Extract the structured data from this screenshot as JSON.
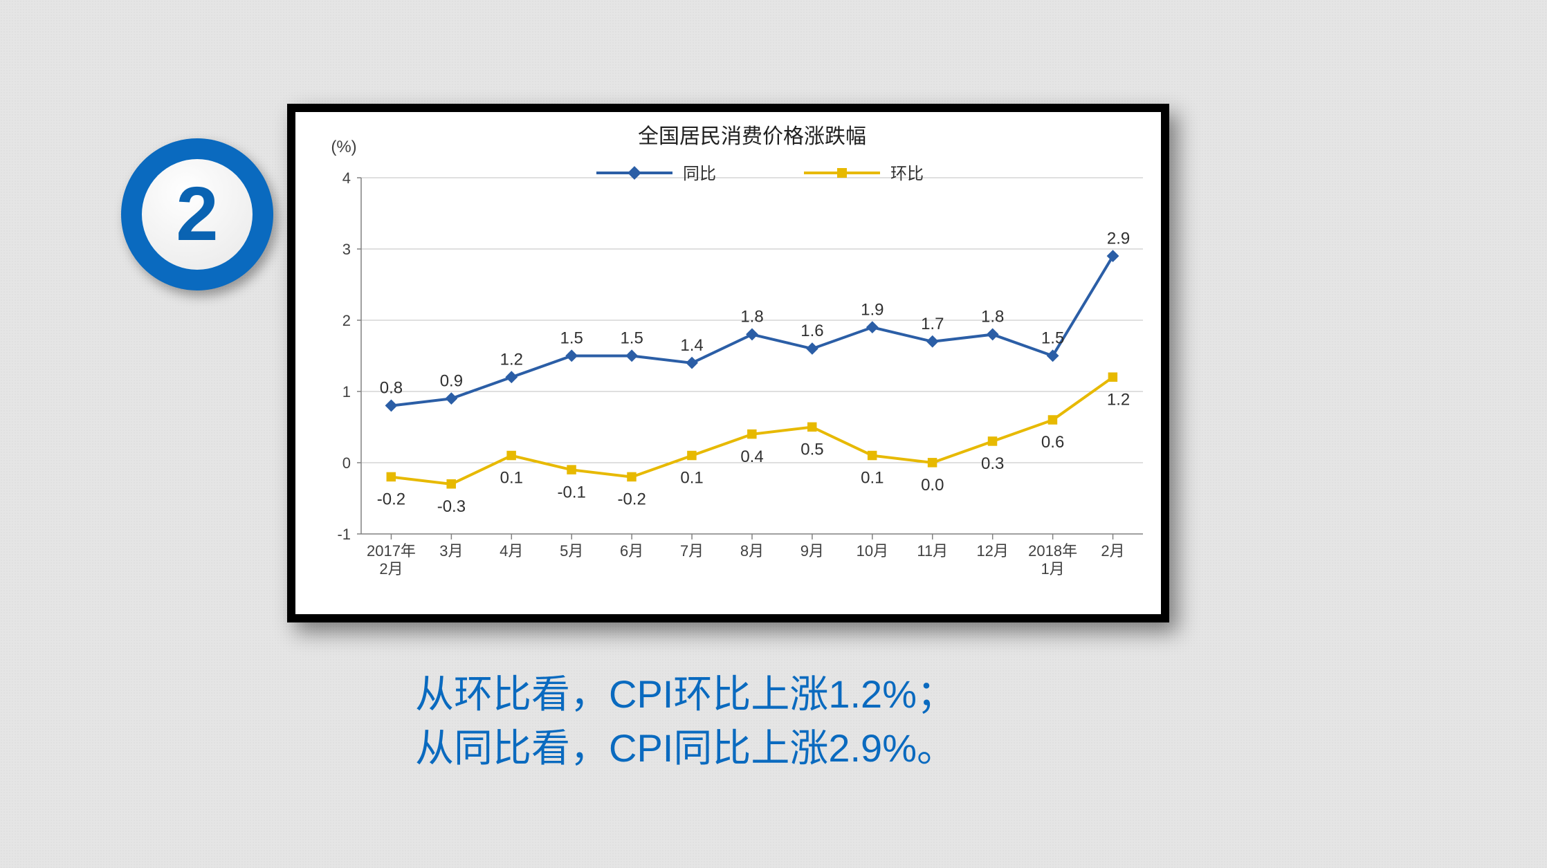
{
  "badge": {
    "number": "2",
    "ring_color": "#0a6abf",
    "text_color": "#0a63b2"
  },
  "chart": {
    "type": "line",
    "title": "全国居民消费价格涨跌幅",
    "title_fontsize": 30,
    "y_axis_unit": "(%)",
    "unit_fontsize": 24,
    "background_color": "#ffffff",
    "border_color": "#000000",
    "grid_color": "#bfbfbf",
    "axis_color": "#808080",
    "tick_font_color": "#404040",
    "tick_fontsize": 22,
    "categories": [
      "2017年\n2月",
      "3月",
      "4月",
      "5月",
      "6月",
      "7月",
      "8月",
      "9月",
      "10月",
      "11月",
      "12月",
      "2018年\n1月",
      "2月"
    ],
    "ylim": [
      -1,
      4
    ],
    "ytick_step": 1,
    "series": [
      {
        "name": "同比",
        "color": "#2b5ea6",
        "marker": "diamond",
        "marker_size": 9,
        "line_width": 4,
        "values": [
          0.8,
          0.9,
          1.2,
          1.5,
          1.5,
          1.4,
          1.8,
          1.6,
          1.9,
          1.7,
          1.8,
          1.5,
          2.9
        ]
      },
      {
        "name": "环比",
        "color": "#e7b900",
        "marker": "square",
        "marker_size": 9,
        "line_width": 4,
        "values": [
          -0.2,
          -0.3,
          0.1,
          -0.1,
          -0.2,
          0.1,
          0.4,
          0.5,
          0.1,
          0.0,
          0.3,
          0.6,
          1.2
        ]
      }
    ],
    "legend": {
      "position": "top-center",
      "fontsize": 24
    }
  },
  "caption": {
    "line1": "从环比看，CPI环比上涨1.2%；",
    "line2": "从同比看，CPI同比上涨2.9%。",
    "color": "#0a6abf",
    "fontsize": 56
  }
}
